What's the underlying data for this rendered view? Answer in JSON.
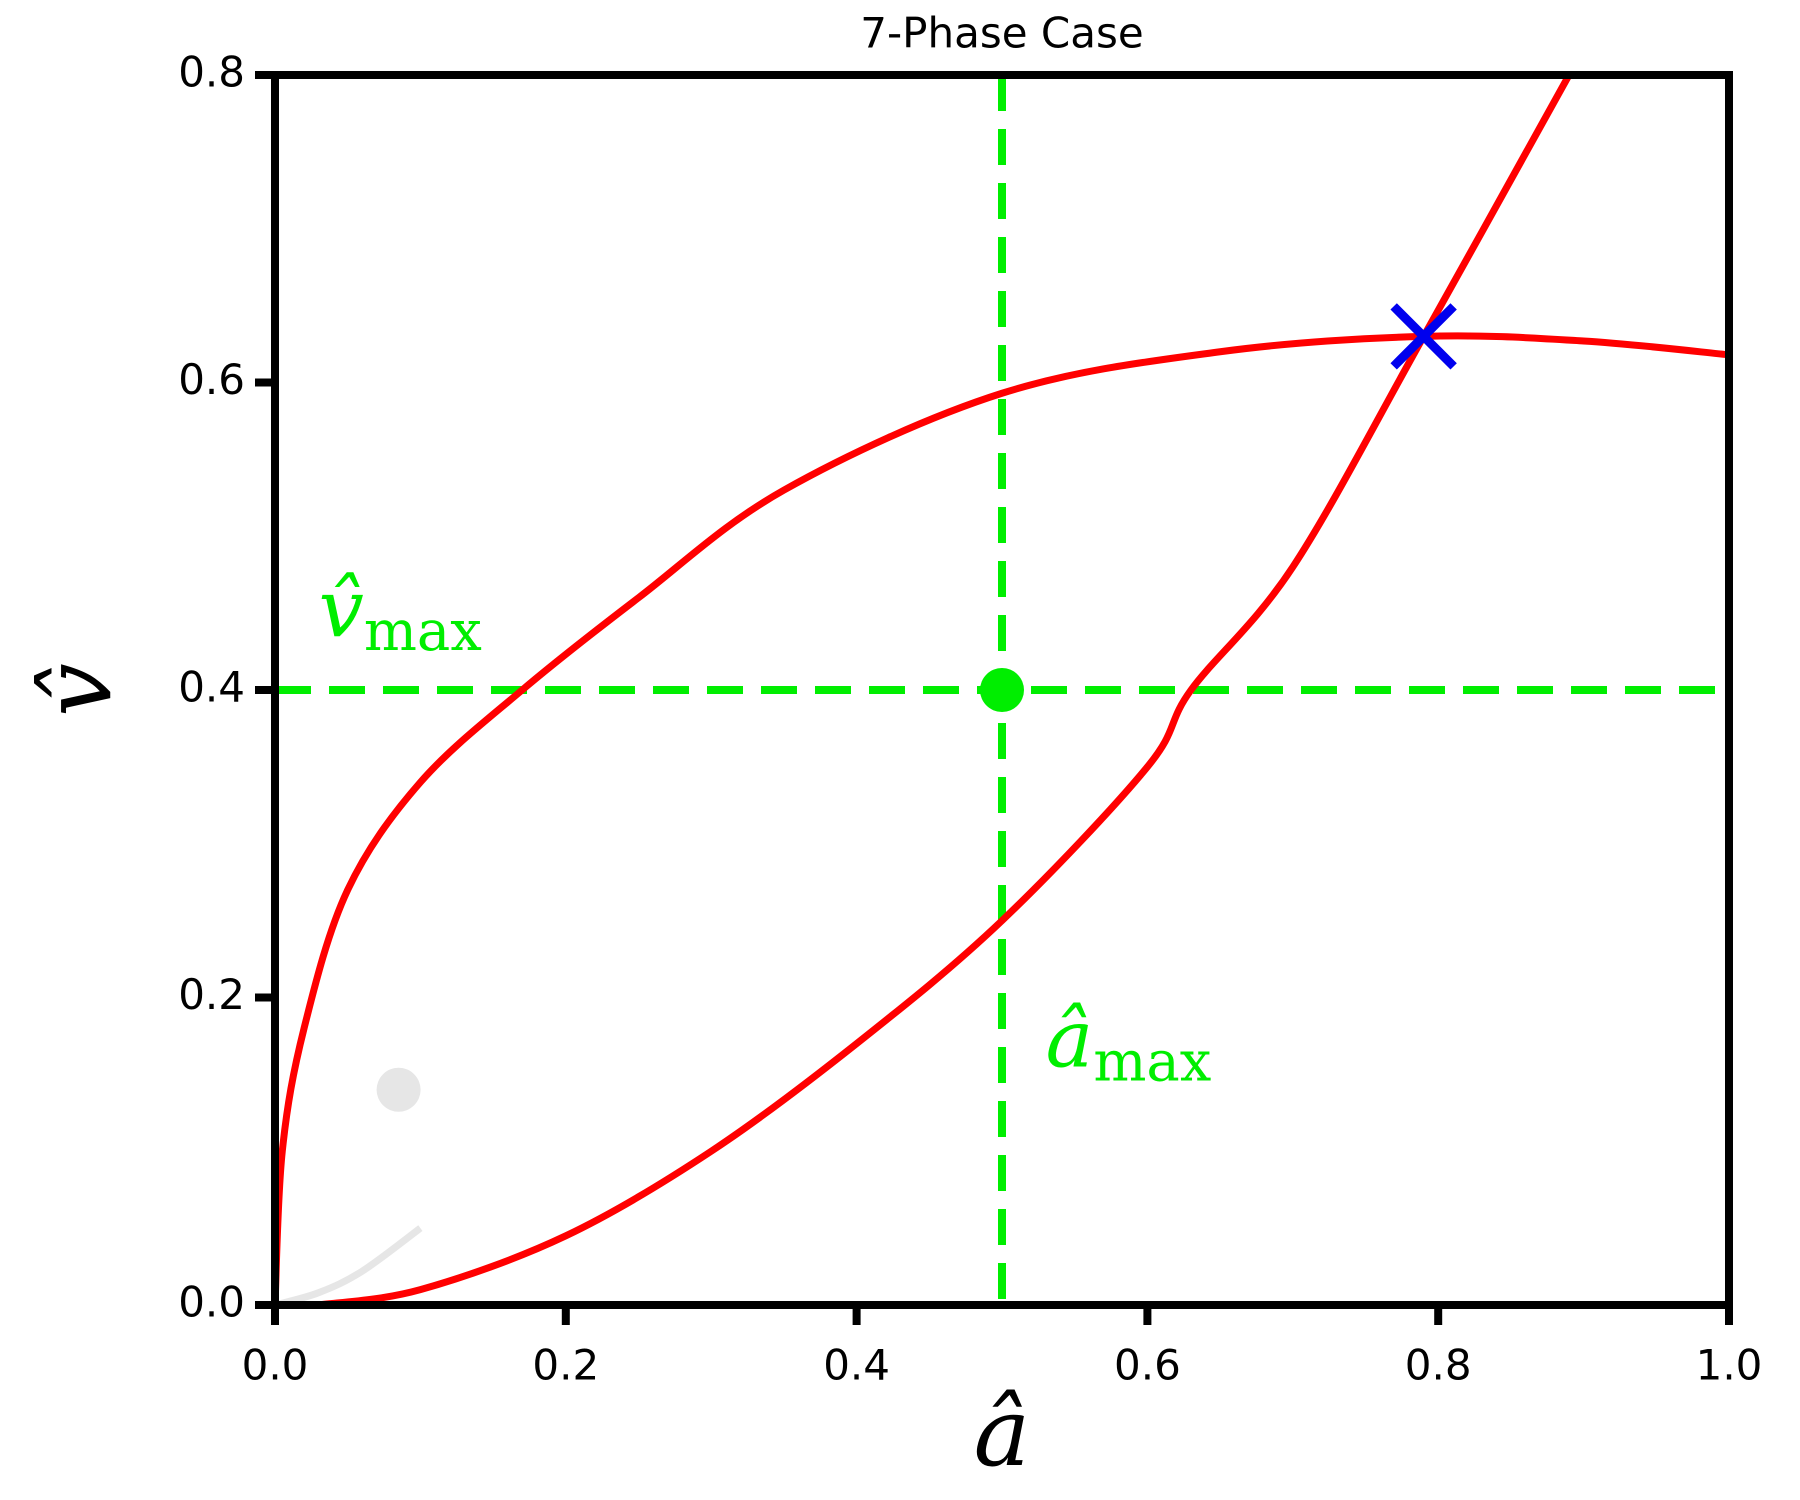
{
  "chart_data": {
    "type": "line",
    "title": "7-Phase Case",
    "x_label": "â",
    "y_label": "v̂",
    "xlim": [
      0,
      1
    ],
    "ylim": [
      0,
      0.8
    ],
    "xticks": [
      {
        "value": 0,
        "label": "0.0"
      },
      0.2,
      0.4,
      0.6,
      0.8,
      {
        "value": 1,
        "label": "1.0"
      }
    ],
    "yticks": [
      {
        "value": 0,
        "label": "0.0"
      },
      0.2,
      0.4,
      0.6,
      0.8
    ],
    "series": [
      {
        "color": "#ff0000",
        "x": [
          0,
          0.005,
          0.02,
          0.05,
          0.1,
          0.17,
          0.25,
          0.35,
          0.5,
          0.65,
          0.79,
          0.9,
          1.0
        ],
        "values": [
          0,
          0.1,
          0.18,
          0.27,
          0.34,
          0.4,
          0.46,
          0.53,
          0.593,
          0.62,
          0.63,
          0.627,
          0.618
        ]
      },
      {
        "color": "#ff0000",
        "x": [
          0.03,
          0.1,
          0.2,
          0.3,
          0.4,
          0.5,
          0.6,
          0.63,
          0.7,
          0.79,
          0.89
        ],
        "values": [
          0,
          0.01,
          0.045,
          0.1,
          0.17,
          0.25,
          0.35,
          0.4,
          0.48,
          0.63,
          0.8
        ]
      },
      {
        "color": "#e6e6e6",
        "x": [
          0,
          0.03,
          0.06,
          0.1
        ],
        "values": [
          0,
          0.008,
          0.022,
          0.05
        ]
      }
    ],
    "points": [
      {
        "x": 0.085,
        "y": 0.14,
        "color": "#e6e6e6",
        "marker": "dot"
      },
      {
        "x": 0.5,
        "y": 0.4,
        "color": "#00ee00",
        "marker": "dot"
      },
      {
        "x": 0.79,
        "y": 0.63,
        "color": "#0000ee",
        "marker": "cross"
      }
    ],
    "hlines": [
      {
        "y": 0.4,
        "color": "#00ee00"
      }
    ],
    "vlines": [
      {
        "x": 0.5,
        "color": "#00ee00"
      }
    ],
    "annotations": [
      {
        "text": "v̂",
        "sub": "max",
        "x": 0.03,
        "y": 0.435,
        "color": "#00ee00"
      },
      {
        "text": "â",
        "sub": "max",
        "x": 0.53,
        "y": 0.155,
        "color": "#00ee00"
      }
    ]
  }
}
